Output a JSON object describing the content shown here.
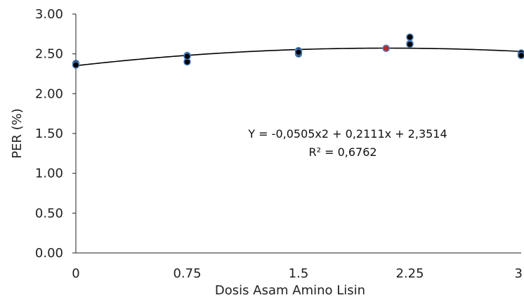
{
  "chart_data": {
    "type": "scatter",
    "xlabel": "Dosis Asam Amino Lisin",
    "ylabel": "PER (%)",
    "xlim": [
      0,
      3
    ],
    "ylim": [
      0,
      3
    ],
    "x_ticks": [
      0,
      0.75,
      1.5,
      2.25,
      3
    ],
    "x_tick_labels": [
      "0",
      "0.75",
      "1.5",
      "2.25",
      "3"
    ],
    "y_ticks": [
      0,
      0.5,
      1,
      1.5,
      2,
      2.5,
      3
    ],
    "y_tick_labels": [
      "0.00",
      "0.50",
      "1.00",
      "1.50",
      "2.00",
      "2.50",
      "3.00"
    ],
    "grid": false,
    "series": [
      {
        "marker": "circle",
        "color": "#000000",
        "edge_color": "#4a7ebb",
        "points": [
          {
            "x": 0,
            "y": 2.38
          },
          {
            "x": 0,
            "y": 2.36
          },
          {
            "x": 0.75,
            "y": 2.48
          },
          {
            "x": 0.75,
            "y": 2.4
          },
          {
            "x": 0.75,
            "y": 2.47
          },
          {
            "x": 1.5,
            "y": 2.54
          },
          {
            "x": 1.5,
            "y": 2.5
          },
          {
            "x": 1.5,
            "y": 2.52
          },
          {
            "x": 2.25,
            "y": 2.71
          },
          {
            "x": 2.25,
            "y": 2.63
          },
          {
            "x": 2.25,
            "y": 2.62
          },
          {
            "x": 3,
            "y": 2.51
          },
          {
            "x": 3,
            "y": 2.48
          }
        ]
      },
      {
        "marker": "circle",
        "color": "#c0262d",
        "edge_color": "#4a7ebb",
        "points": [
          {
            "x": 2.09,
            "y": 2.57
          }
        ]
      }
    ],
    "trendline": {
      "type": "polynomial",
      "coefficients": {
        "a": -0.0505,
        "b": 0.2111,
        "c": 2.3514
      },
      "color": "#000000"
    },
    "annotations": [
      "Y = -0,0505x2 + 0,2111x + 2,3514",
      "R² = 0,6762"
    ]
  }
}
